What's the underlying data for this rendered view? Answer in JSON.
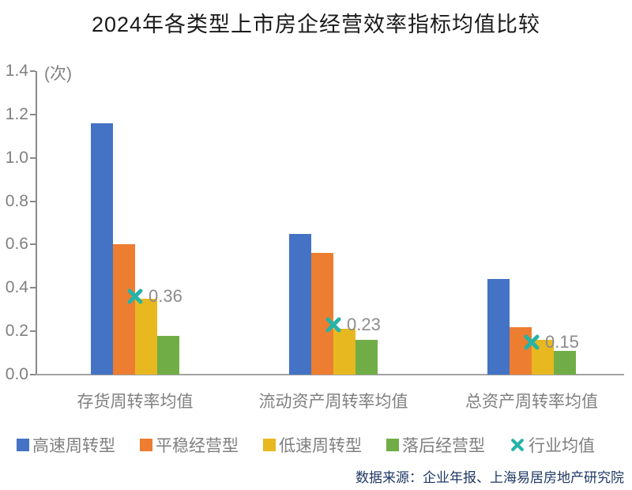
{
  "source_note": "数据来源：企业年报、上海易居房地产研究院",
  "chart_data": {
    "type": "bar",
    "title": "2024年各类型上市房企经营效率指标均值比较",
    "unit_label": "(次)",
    "categories": [
      "存货周转率均值",
      "流动资产周转率均值",
      "总资产周转率均值"
    ],
    "series": [
      {
        "key": "high-speed-turnover",
        "name": "高速周转型",
        "color": "#4472C4",
        "values": [
          1.16,
          0.65,
          0.44
        ]
      },
      {
        "key": "stable-operation",
        "name": "平稳经营型",
        "color": "#ED7D31",
        "values": [
          0.6,
          0.56,
          0.22
        ]
      },
      {
        "key": "low-speed-turnover",
        "name": "低速周转型",
        "color": "#E8B820",
        "values": [
          0.35,
          0.21,
          0.16
        ]
      },
      {
        "key": "lagging-operation",
        "name": "落后经营型",
        "color": "#70AD47",
        "values": [
          0.18,
          0.16,
          0.11
        ]
      }
    ],
    "marker_series": {
      "key": "industry-average",
      "name": "行业均值",
      "color": "#26B3A7",
      "marker": "x",
      "values": [
        0.36,
        0.23,
        0.15
      ],
      "labels": [
        "0.36",
        "0.23",
        "0.15"
      ]
    },
    "yticks": [
      0.0,
      0.2,
      0.4,
      0.6,
      0.8,
      1.0,
      1.2,
      1.4
    ],
    "ylim": [
      0,
      1.4
    ],
    "grid": false,
    "legend_position": "bottom",
    "axis_color": "#8a8a8a",
    "tick_label_color": "#808080"
  }
}
